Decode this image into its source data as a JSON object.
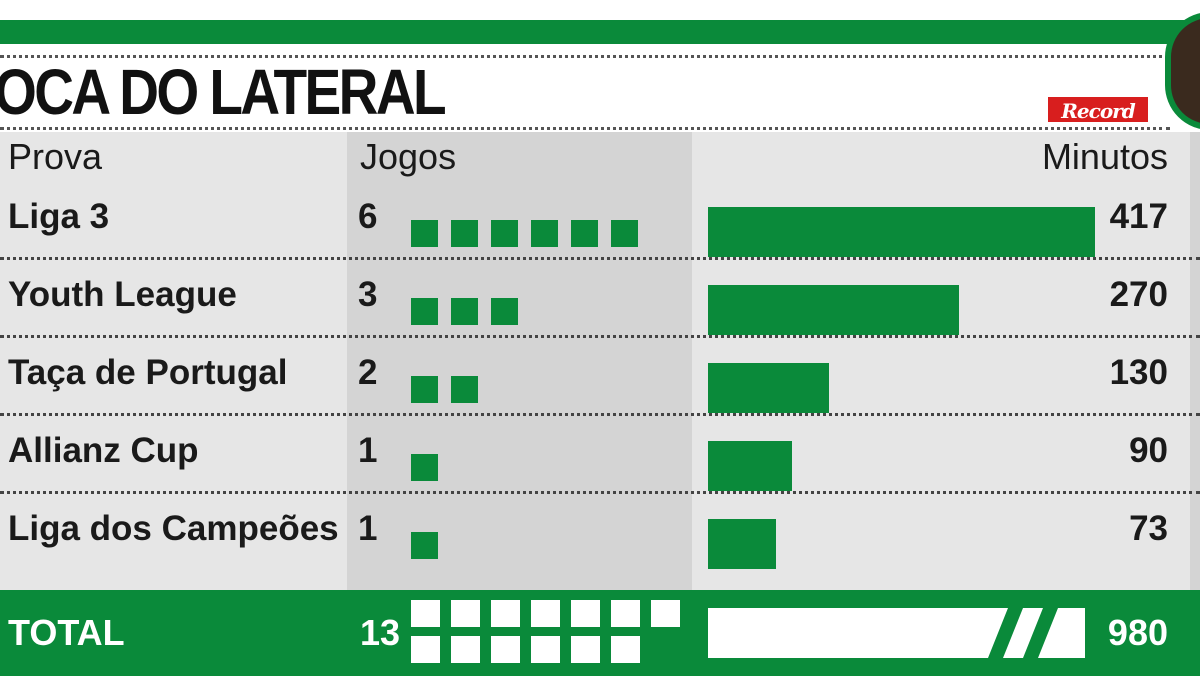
{
  "title": "OCA DO LATERAL",
  "brand": "Record",
  "colors": {
    "accent": "#0a8a3a",
    "brand": "#d81e1e"
  },
  "headers": {
    "competition": "Prova",
    "games": "Jogos",
    "minutes": "Minutos"
  },
  "total": {
    "label": "TOTAL",
    "games": "13",
    "minutes": "980"
  },
  "chart_data": {
    "type": "bar",
    "orientation": "horizontal",
    "categories": [
      "Liga 3",
      "Youth League",
      "Taça de Portugal",
      "Allianz Cup",
      "Liga dos Campeões"
    ],
    "series": [
      {
        "name": "Jogos",
        "values": [
          6,
          3,
          2,
          1,
          1
        ]
      },
      {
        "name": "Minutos",
        "values": [
          417,
          270,
          130,
          90,
          73
        ]
      }
    ],
    "total": {
      "games": 13,
      "minutes": 980
    },
    "labels": {
      "games": [
        "6",
        "3",
        "2",
        "1",
        "1"
      ],
      "minutes": [
        "417",
        "270",
        "130",
        "90",
        "73"
      ]
    },
    "grid": false
  }
}
